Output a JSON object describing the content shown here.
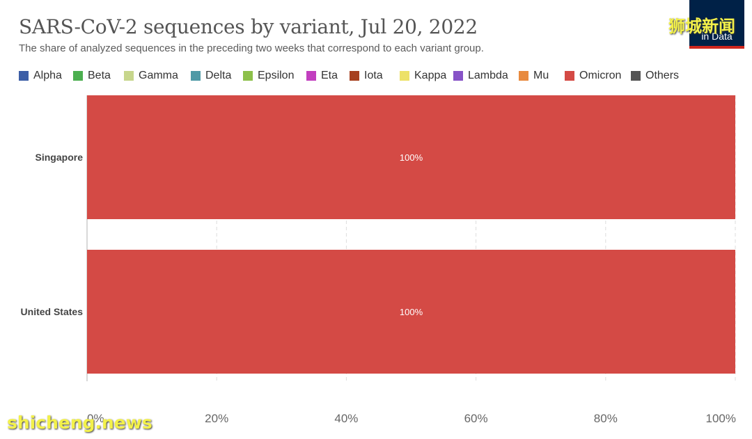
{
  "header": {
    "title": "SARS-CoV-2 sequences by variant, Jul 20, 2022",
    "subtitle": "The share of analyzed sequences in the preceding two weeks that correspond to each variant group."
  },
  "logo": {
    "line1": "",
    "line2": "in Data"
  },
  "watermarks": {
    "top": "狮城新闻",
    "bottom": "shicheng.news"
  },
  "legend": [
    {
      "label": "Alpha",
      "color": "#3c5ea6"
    },
    {
      "label": "Beta",
      "color": "#4caf50"
    },
    {
      "label": "Gamma",
      "color": "#c7d68c"
    },
    {
      "label": "Delta",
      "color": "#4f99a6"
    },
    {
      "label": "Epsilon",
      "color": "#8dc04a"
    },
    {
      "label": "Eta",
      "color": "#c23fbf"
    },
    {
      "label": "Iota",
      "color": "#a6401f"
    },
    {
      "label": "Kappa",
      "color": "#ede168"
    },
    {
      "label": "Lambda",
      "color": "#8753c7"
    },
    {
      "label": "Mu",
      "color": "#e88a3f"
    },
    {
      "label": "Omicron",
      "color": "#d44a45"
    },
    {
      "label": "Others",
      "color": "#545454"
    }
  ],
  "chart_data": {
    "type": "bar",
    "orientation": "horizontal",
    "stacked": true,
    "title": "SARS-CoV-2 sequences by variant, Jul 20, 2022",
    "categories": [
      "Singapore",
      "United States"
    ],
    "series": [
      {
        "name": "Omicron",
        "values": [
          100,
          100
        ],
        "labels": [
          "100%",
          "100%"
        ],
        "color": "#d44a45"
      }
    ],
    "xlim": [
      0,
      100
    ],
    "xticks": [
      "0%",
      "20%",
      "40%",
      "60%",
      "80%",
      "100%"
    ],
    "grid": true,
    "legend_position": "top"
  }
}
